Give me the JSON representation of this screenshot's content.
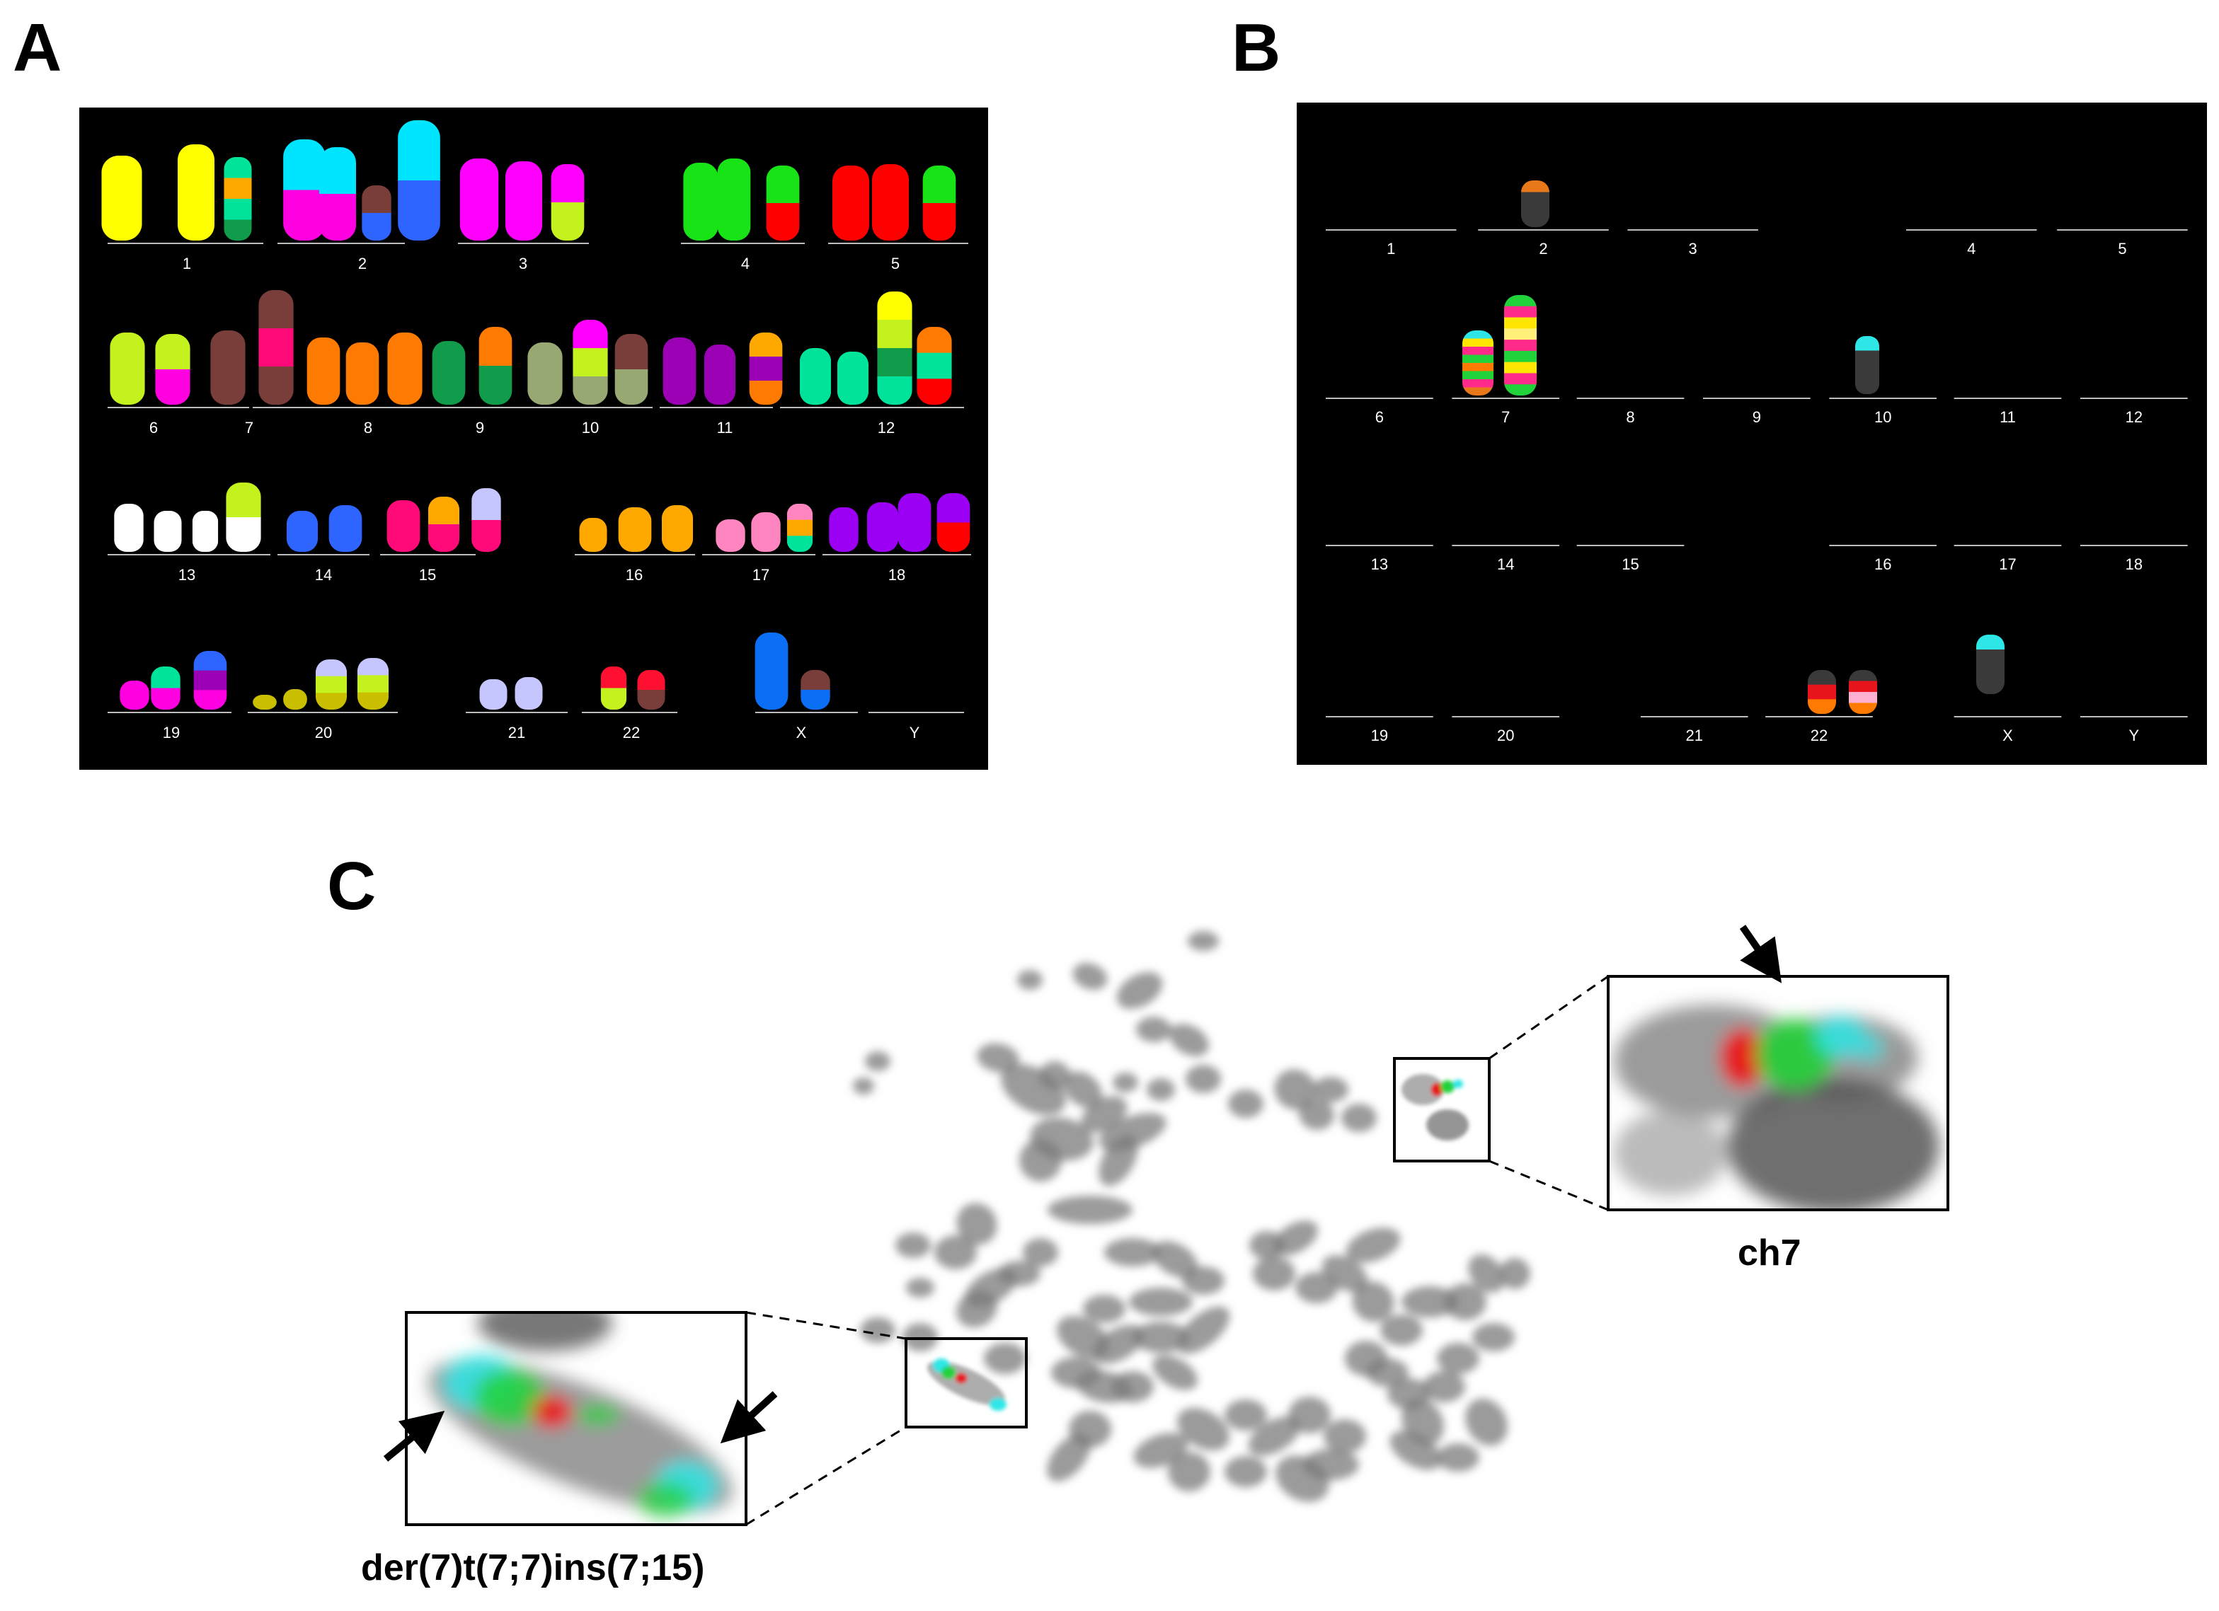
{
  "panels": {
    "a": {
      "letter": "A"
    },
    "b": {
      "letter": "B"
    },
    "c": {
      "letter": "C"
    }
  },
  "karyogram_a": {
    "labels": [
      "1",
      "2",
      "3",
      "4",
      "5",
      "6",
      "7",
      "8",
      "9",
      "10",
      "11",
      "12",
      "13",
      "14",
      "15",
      "16",
      "17",
      "18",
      "19",
      "20",
      "21",
      "22",
      "X",
      "Y"
    ]
  },
  "karyogram_b": {
    "labels": [
      "1",
      "2",
      "3",
      "4",
      "5",
      "6",
      "7",
      "8",
      "9",
      "10",
      "11",
      "12",
      "13",
      "14",
      "15",
      "16",
      "17",
      "18",
      "19",
      "20",
      "21",
      "22",
      "X",
      "Y"
    ]
  },
  "metaphase": {
    "inset_right_caption": "ch7",
    "inset_left_caption": "der(7)t(7;7)ins(7;15)"
  },
  "colors": {
    "background_panels": "#000000",
    "baseline": "#bdbdbd",
    "label_text": "#ffffff",
    "chromosome_gray": "#8a8a8a",
    "fish_red": "#e8141c",
    "fish_green": "#22d23a",
    "fish_cyan": "#2ee6e6"
  }
}
